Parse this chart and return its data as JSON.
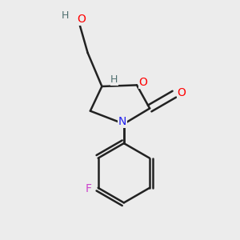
{
  "background_color": "#ececec",
  "atom_colors": {
    "C": "#000000",
    "O": "#ff0000",
    "N": "#2222ee",
    "F": "#cc44cc",
    "H_teal": "#507070"
  },
  "bond_color": "#222222",
  "bond_width": 1.8,
  "figsize": [
    3.0,
    3.0
  ],
  "dpi": 100,
  "xlim": [
    0.15,
    0.85
  ],
  "ylim": [
    0.05,
    0.97
  ]
}
